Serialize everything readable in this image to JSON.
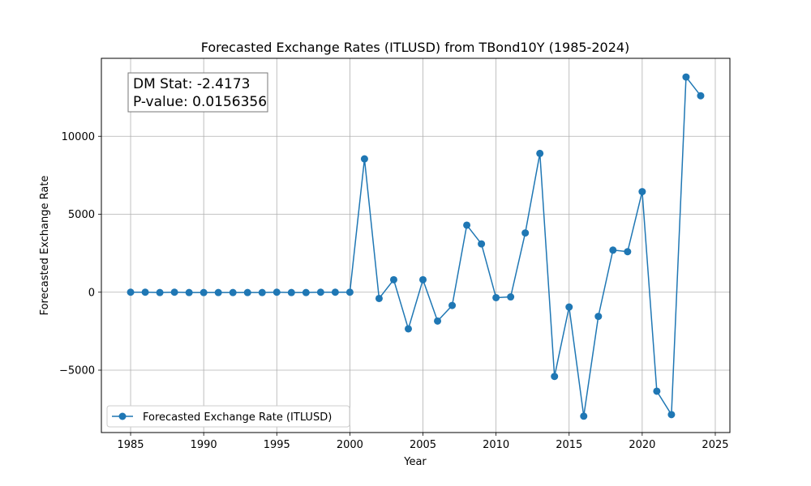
{
  "chart_data": {
    "type": "line",
    "title": "Forecasted Exchange Rates (ITLUSD) from TBond10Y (1985-2024)",
    "xlabel": "Year",
    "ylabel": "Forecasted Exchange Rate",
    "xlim": [
      1983,
      2026
    ],
    "ylim": [
      -9000,
      15000
    ],
    "xticks": [
      1985,
      1990,
      1995,
      2000,
      2005,
      2010,
      2015,
      2020,
      2025
    ],
    "yticks": [
      -5000,
      0,
      5000,
      10000
    ],
    "ytick_labels": [
      "−5000",
      "0",
      "5000",
      "10000"
    ],
    "grid": true,
    "legend": {
      "position": "lower-left",
      "entries": [
        "Forecasted Exchange Rate (ITLUSD)"
      ]
    },
    "annotation": {
      "line1": "DM Stat: -2.4173",
      "line2": "P-value: 0.0156356"
    },
    "series": [
      {
        "name": "Forecasted Exchange Rate (ITLUSD)",
        "color": "#1f77b4",
        "x": [
          1985,
          1986,
          1987,
          1988,
          1989,
          1990,
          1991,
          1992,
          1993,
          1994,
          1995,
          1996,
          1997,
          1998,
          1999,
          2000,
          2001,
          2002,
          2003,
          2004,
          2005,
          2006,
          2007,
          2008,
          2009,
          2010,
          2011,
          2012,
          2013,
          2014,
          2015,
          2016,
          2017,
          2018,
          2019,
          2020,
          2021,
          2022,
          2023,
          2024
        ],
        "y": [
          0,
          0,
          -20,
          0,
          -20,
          -20,
          -20,
          -20,
          -20,
          -20,
          0,
          -20,
          -20,
          0,
          0,
          0,
          8550,
          -400,
          800,
          -2350,
          800,
          -1850,
          -850,
          4300,
          3100,
          -350,
          -300,
          3800,
          8900,
          -5400,
          -950,
          -7950,
          -1550,
          2700,
          2600,
          6450,
          -6350,
          -7850,
          13800,
          12600
        ]
      }
    ]
  }
}
